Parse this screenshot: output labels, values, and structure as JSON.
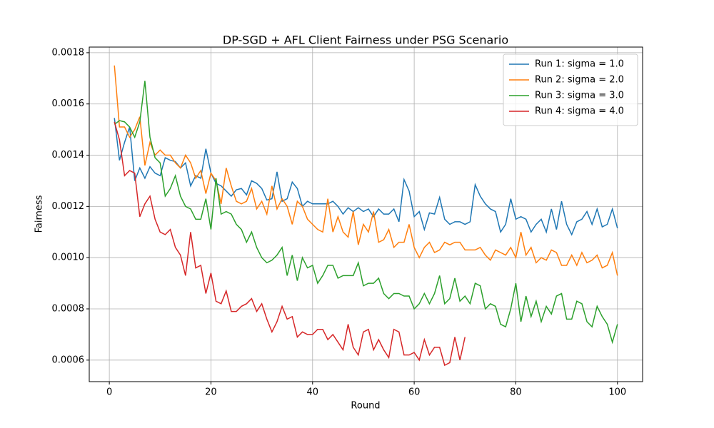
{
  "chart_data": {
    "type": "line",
    "title": "DP-SGD + AFL Client Fairness under PSG Scenario",
    "x_label": "Round",
    "y_label": "Fairness",
    "x": [
      1,
      2,
      3,
      4,
      5,
      6,
      7,
      8,
      9,
      10,
      11,
      12,
      13,
      14,
      15,
      16,
      17,
      18,
      19,
      20,
      21,
      22,
      23,
      24,
      25,
      26,
      27,
      28,
      29,
      30,
      31,
      32,
      33,
      34,
      35,
      36,
      37,
      38,
      39,
      40,
      41,
      42,
      43,
      44,
      45,
      46,
      47,
      48,
      49,
      50,
      51,
      52,
      53,
      54,
      55,
      56,
      57,
      58,
      59,
      60,
      61,
      62,
      63,
      64,
      65,
      66,
      67,
      68,
      69,
      70,
      71,
      72,
      73,
      74,
      75,
      76,
      77,
      78,
      79,
      80,
      81,
      82,
      83,
      84,
      85,
      86,
      87,
      88,
      89,
      90,
      91,
      92,
      93,
      94,
      95,
      96,
      97,
      98,
      99,
      100
    ],
    "series": [
      {
        "name": "Run 1: sigma = 1.0",
        "color": "#1f77b4",
        "values": [
          0.001545,
          0.00138,
          0.00145,
          0.00151,
          0.0013,
          0.00135,
          0.00131,
          0.001355,
          0.00133,
          0.00132,
          0.00139,
          0.00138,
          0.001375,
          0.00135,
          0.00137,
          0.00128,
          0.00132,
          0.00131,
          0.001425,
          0.00133,
          0.00129,
          0.00128,
          0.00126,
          0.00124,
          0.001265,
          0.00127,
          0.001245,
          0.0013,
          0.00129,
          0.00127,
          0.001225,
          0.00123,
          0.001335,
          0.00122,
          0.00123,
          0.001295,
          0.00127,
          0.0012,
          0.00122,
          0.00121,
          0.00121,
          0.00121,
          0.00121,
          0.00122,
          0.0012,
          0.00117,
          0.001195,
          0.00118,
          0.001195,
          0.00118,
          0.00119,
          0.00116,
          0.00119,
          0.00117,
          0.00117,
          0.00119,
          0.00114,
          0.001305,
          0.00126,
          0.00116,
          0.00118,
          0.00111,
          0.001175,
          0.00117,
          0.001235,
          0.00115,
          0.00113,
          0.00114,
          0.00114,
          0.00113,
          0.00114,
          0.001285,
          0.00124,
          0.00121,
          0.00119,
          0.00118,
          0.0011,
          0.00113,
          0.00123,
          0.00115,
          0.00116,
          0.00115,
          0.0011,
          0.00113,
          0.00115,
          0.0011,
          0.00119,
          0.00111,
          0.00122,
          0.00113,
          0.00109,
          0.00114,
          0.00115,
          0.00118,
          0.00113,
          0.00119,
          0.00112,
          0.00113,
          0.00119,
          0.001115
        ]
      },
      {
        "name": "Run 2: sigma = 2.0",
        "color": "#ff7f0e",
        "values": [
          0.00175,
          0.00151,
          0.00151,
          0.00147,
          0.0015,
          0.00155,
          0.00136,
          0.00145,
          0.0014,
          0.00142,
          0.0014,
          0.0014,
          0.00137,
          0.00135,
          0.0014,
          0.00137,
          0.00131,
          0.00134,
          0.00125,
          0.00133,
          0.0013,
          0.00121,
          0.00135,
          0.00128,
          0.00122,
          0.00121,
          0.00122,
          0.00127,
          0.00119,
          0.00122,
          0.00117,
          0.00128,
          0.00119,
          0.00123,
          0.0012,
          0.00113,
          0.00122,
          0.0012,
          0.00115,
          0.00113,
          0.00111,
          0.0011,
          0.00123,
          0.0011,
          0.00116,
          0.0011,
          0.00108,
          0.00118,
          0.00105,
          0.00113,
          0.0011,
          0.00118,
          0.00106,
          0.00107,
          0.00111,
          0.00104,
          0.00106,
          0.00106,
          0.00113,
          0.00104,
          0.001,
          0.00104,
          0.00106,
          0.00102,
          0.00103,
          0.00106,
          0.00105,
          0.00106,
          0.00106,
          0.00103,
          0.00103,
          0.00103,
          0.00104,
          0.00101,
          0.00099,
          0.00103,
          0.00102,
          0.00101,
          0.00104,
          0.001,
          0.0011,
          0.00101,
          0.00104,
          0.00098,
          0.001,
          0.00099,
          0.00103,
          0.00102,
          0.00097,
          0.00097,
          0.00101,
          0.00097,
          0.00102,
          0.00098,
          0.00099,
          0.00101,
          0.00096,
          0.00097,
          0.00102,
          0.00093
        ]
      },
      {
        "name": "Run 3: sigma = 3.0",
        "color": "#2ca02c",
        "values": [
          0.00152,
          0.001535,
          0.00153,
          0.00151,
          0.00147,
          0.00153,
          0.00169,
          0.00147,
          0.00139,
          0.00137,
          0.00124,
          0.00127,
          0.00132,
          0.00124,
          0.0012,
          0.00119,
          0.00115,
          0.00115,
          0.00123,
          0.00111,
          0.00131,
          0.00117,
          0.00118,
          0.00117,
          0.00113,
          0.00111,
          0.00106,
          0.0011,
          0.00104,
          0.001,
          0.00098,
          0.00099,
          0.00101,
          0.00104,
          0.00093,
          0.00101,
          0.00091,
          0.001,
          0.00096,
          0.00097,
          0.0009,
          0.00093,
          0.00097,
          0.00097,
          0.00092,
          0.00093,
          0.00093,
          0.00093,
          0.00098,
          0.00089,
          0.0009,
          0.0009,
          0.00092,
          0.00086,
          0.00084,
          0.00086,
          0.00086,
          0.00085,
          0.00085,
          0.0008,
          0.00082,
          0.00086,
          0.00082,
          0.00086,
          0.00093,
          0.00082,
          0.00084,
          0.00092,
          0.00083,
          0.00085,
          0.00082,
          0.0009,
          0.00089,
          0.0008,
          0.00082,
          0.00081,
          0.00074,
          0.00073,
          0.0008,
          0.0009,
          0.00075,
          0.00085,
          0.00077,
          0.00083,
          0.00075,
          0.00081,
          0.00078,
          0.00085,
          0.00086,
          0.00076,
          0.00076,
          0.00083,
          0.00082,
          0.00075,
          0.00073,
          0.00081,
          0.00077,
          0.00074,
          0.00067,
          0.00074
        ]
      },
      {
        "name": "Run 4: sigma = 4.0",
        "color": "#d62728",
        "values": [
          0.00153,
          0.00146,
          0.00132,
          0.00134,
          0.00133,
          0.00116,
          0.00121,
          0.00124,
          0.00115,
          0.0011,
          0.00109,
          0.00111,
          0.00104,
          0.00101,
          0.00093,
          0.0011,
          0.00096,
          0.00097,
          0.00086,
          0.00094,
          0.00083,
          0.00082,
          0.00087,
          0.00079,
          0.00079,
          0.00081,
          0.00082,
          0.00084,
          0.00079,
          0.00082,
          0.00076,
          0.00071,
          0.00075,
          0.00081,
          0.00076,
          0.00077,
          0.00069,
          0.00071,
          0.0007,
          0.0007,
          0.00072,
          0.00072,
          0.00068,
          0.0007,
          0.00067,
          0.00064,
          0.00074,
          0.00065,
          0.00062,
          0.00071,
          0.00072,
          0.00064,
          0.00068,
          0.00064,
          0.00061,
          0.00072,
          0.00071,
          0.00062,
          0.00062,
          0.00063,
          0.0006,
          0.00068,
          0.00062,
          0.00065,
          0.00065,
          0.00058,
          0.00059,
          0.00069,
          0.0006,
          0.00069,
          null,
          null,
          null,
          null,
          null,
          null,
          null,
          null,
          null,
          null,
          null,
          null,
          null,
          null,
          null,
          null,
          null,
          null,
          null,
          null,
          null,
          null,
          null,
          null,
          null,
          null,
          null,
          null,
          null,
          null
        ]
      }
    ],
    "xlim": [
      -3.95,
      104.95
    ],
    "xticks": [
      0,
      20,
      40,
      60,
      80,
      100
    ],
    "ylim": [
      0.000516,
      0.001822
    ],
    "yticks": [
      0.0006,
      0.0008,
      {
        "value": 0.001,
        "label": "0.0010"
      },
      0.0012,
      0.0014,
      0.0016,
      0.0018
    ],
    "grid": true,
    "legend": "upper right"
  }
}
